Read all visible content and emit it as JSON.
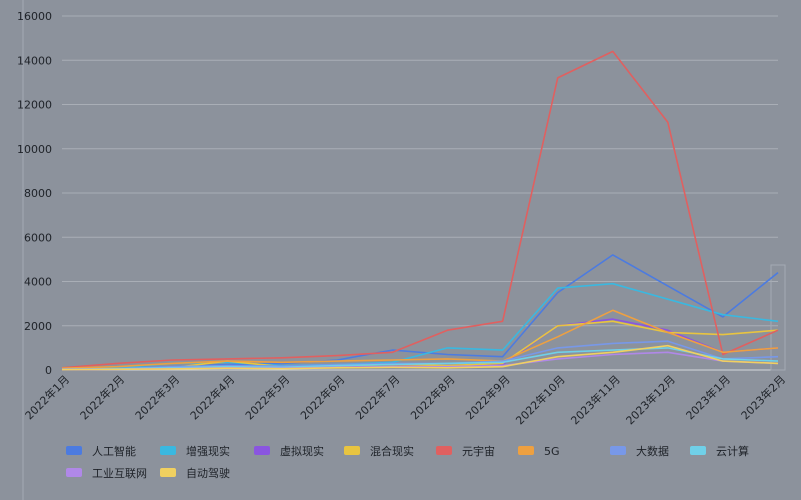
{
  "chart_data": {
    "type": "line",
    "title": "",
    "xlabel": "",
    "ylabel": "",
    "ylim": [
      0,
      16000
    ],
    "yticks": [
      0,
      2000,
      4000,
      6000,
      8000,
      10000,
      12000,
      14000,
      16000
    ],
    "grid": true,
    "legend_position": "bottom",
    "categories": [
      "2022年1月",
      "2022年2月",
      "2022年3月",
      "2022年4月",
      "2022年5月",
      "2022年6月",
      "2022年7月",
      "2022年8月",
      "2022年9月",
      "2022年10月",
      "2023年11月",
      "2023年12月",
      "2023年1月",
      "2023年2月"
    ],
    "series": [
      {
        "name": "人工智能",
        "color": "#4c7be0",
        "values": [
          50,
          80,
          150,
          250,
          300,
          450,
          900,
          700,
          600,
          3500,
          5200,
          3800,
          2400,
          4400
        ]
      },
      {
        "name": "增强现实",
        "color": "#3ab8e0",
        "values": [
          60,
          90,
          300,
          350,
          200,
          250,
          350,
          1000,
          900,
          3700,
          3900,
          3200,
          2500,
          2200
        ]
      },
      {
        "name": "虚拟现实",
        "color": "#8a55e0",
        "values": [
          20,
          40,
          80,
          100,
          90,
          120,
          150,
          200,
          250,
          2000,
          2300,
          1800,
          800,
          1000
        ]
      },
      {
        "name": "混合现实",
        "color": "#e8c440",
        "values": [
          30,
          50,
          100,
          400,
          150,
          200,
          250,
          200,
          300,
          2000,
          2200,
          1700,
          1600,
          1800
        ]
      },
      {
        "name": "元宇宙",
        "color": "#e06060",
        "values": [
          100,
          300,
          450,
          500,
          550,
          650,
          800,
          1800,
          2200,
          13200,
          14400,
          11200,
          700,
          1800
        ]
      },
      {
        "name": "5G",
        "color": "#eea040",
        "values": [
          80,
          150,
          300,
          400,
          350,
          400,
          450,
          500,
          400,
          1500,
          2700,
          1700,
          800,
          1000
        ]
      },
      {
        "name": "大数据",
        "color": "#7898e8",
        "values": [
          40,
          60,
          150,
          200,
          180,
          250,
          300,
          300,
          400,
          1000,
          1200,
          1300,
          500,
          600
        ]
      },
      {
        "name": "云计算",
        "color": "#70d0e8",
        "values": [
          30,
          50,
          100,
          150,
          120,
          200,
          250,
          300,
          350,
          800,
          900,
          1000,
          500,
          400
        ]
      },
      {
        "name": "工业互联网",
        "color": "#b088e8",
        "values": [
          20,
          30,
          60,
          100,
          80,
          120,
          150,
          150,
          200,
          500,
          700,
          800,
          400,
          300
        ]
      },
      {
        "name": "自动驾驶",
        "color": "#f0d060",
        "values": [
          20,
          30,
          50,
          80,
          60,
          100,
          120,
          100,
          150,
          600,
          800,
          1100,
          400,
          300
        ]
      }
    ]
  }
}
